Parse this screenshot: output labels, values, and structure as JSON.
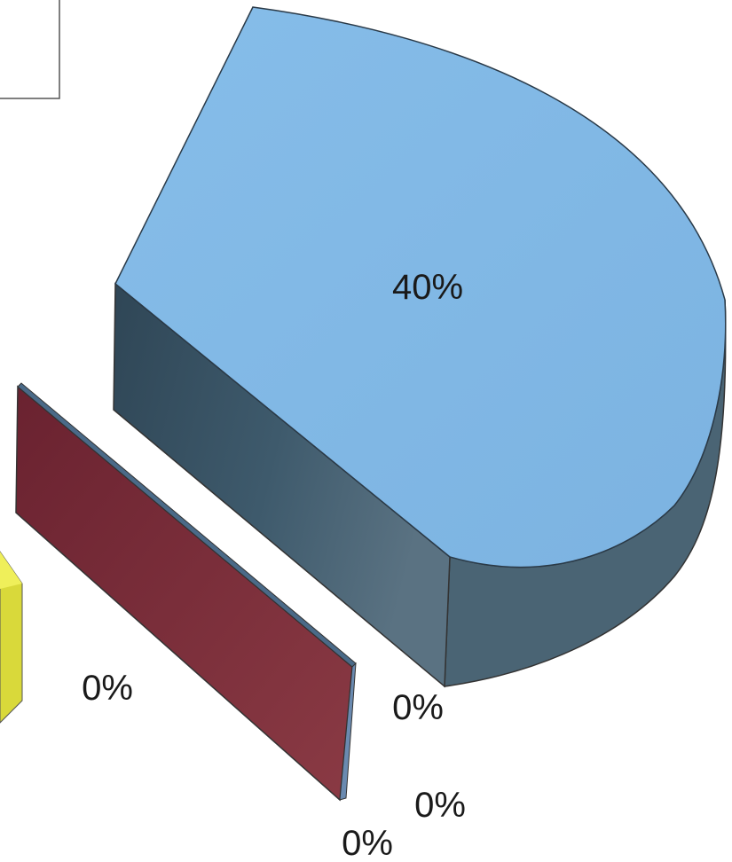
{
  "chart_data": {
    "type": "pie",
    "style": "3d-exploded",
    "title": "",
    "legend": {
      "placement": "top-left"
    },
    "slices": [
      {
        "value": 40,
        "label": "40%",
        "color": "#80b8e6"
      },
      {
        "value": 0,
        "label": "0%",
        "color": "#7a2a3a"
      },
      {
        "value": 0,
        "label": "0%",
        "color": "#80b8e6"
      },
      {
        "value": 0,
        "label": "0%",
        "color": "#7a2a3a"
      },
      {
        "value": 0,
        "label": "0%",
        "color": "#e8e84a"
      }
    ]
  }
}
